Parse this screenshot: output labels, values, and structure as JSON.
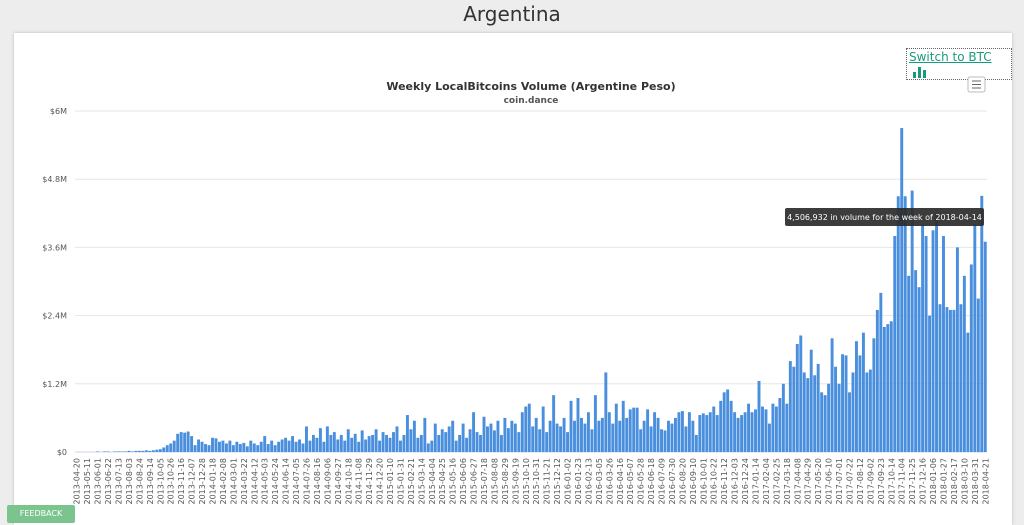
{
  "header": {
    "title": "Argentina"
  },
  "controls": {
    "switch": "Switch to BTC",
    "feedback": "FEEDBACK"
  },
  "chart_data": {
    "type": "bar",
    "title": "Weekly LocalBitcoins Volume (Argentine Peso)",
    "subtitle": "coin.dance",
    "tooltip": "4,506,932 in volume for the week of 2018-04-14",
    "color": "#4a8fde",
    "grid": true,
    "ylim": [
      0,
      6
    ],
    "yticks": [
      {
        "value": 0,
        "label": "$0"
      },
      {
        "value": 1.2,
        "label": "$1.2M"
      },
      {
        "value": 2.4,
        "label": "$2.4M"
      },
      {
        "value": 3.6,
        "label": "$3.6M"
      },
      {
        "value": 4.8,
        "label": "$4.8M"
      },
      {
        "value": 6,
        "label": "$6M"
      }
    ],
    "categories": [
      "2013-04-20",
      null,
      null,
      "2013-05-11",
      null,
      null,
      "2013-06-01",
      null,
      null,
      "2013-06-22",
      null,
      null,
      "2013-07-13",
      null,
      null,
      "2013-08-03",
      null,
      null,
      "2013-08-24",
      null,
      null,
      "2013-09-14",
      null,
      null,
      "2013-10-05",
      null,
      null,
      "2013-10-26",
      null,
      null,
      "2013-11-16",
      null,
      null,
      "2013-12-07",
      null,
      null,
      "2013-12-28",
      null,
      null,
      "2014-01-18",
      null,
      null,
      "2014-02-08",
      null,
      null,
      "2014-03-01",
      null,
      null,
      "2014-03-22",
      null,
      null,
      "2014-04-12",
      null,
      null,
      "2014-05-03",
      null,
      null,
      "2014-05-24",
      null,
      null,
      "2014-06-14",
      null,
      null,
      "2014-07-05",
      null,
      null,
      "2014-07-26",
      null,
      null,
      "2014-08-16",
      null,
      null,
      "2014-09-06",
      null,
      null,
      "2014-09-27",
      null,
      null,
      "2014-10-18",
      null,
      null,
      "2014-11-08",
      null,
      null,
      "2014-11-29",
      null,
      null,
      "2014-12-20",
      null,
      null,
      "2015-01-10",
      null,
      null,
      "2015-01-31",
      null,
      null,
      "2015-02-21",
      null,
      null,
      "2015-03-14",
      null,
      null,
      "2015-04-04",
      null,
      null,
      "2015-04-25",
      null,
      null,
      "2015-05-16",
      null,
      null,
      "2015-06-06",
      null,
      null,
      "2015-06-27",
      null,
      null,
      "2015-07-18",
      null,
      null,
      "2015-08-08",
      null,
      null,
      "2015-08-29",
      null,
      null,
      "2015-09-19",
      null,
      null,
      "2015-10-10",
      null,
      null,
      "2015-10-31",
      null,
      null,
      "2015-11-21",
      null,
      null,
      "2015-12-12",
      null,
      null,
      "2016-01-02",
      null,
      null,
      "2016-01-23",
      null,
      null,
      "2016-02-13",
      null,
      null,
      "2016-03-05",
      null,
      null,
      "2016-03-26",
      null,
      null,
      "2016-04-16",
      null,
      null,
      "2016-05-07",
      null,
      null,
      "2016-05-28",
      null,
      null,
      "2016-06-18",
      null,
      null,
      "2016-07-09",
      null,
      null,
      "2016-07-30",
      null,
      null,
      "2016-08-20",
      null,
      null,
      "2016-09-10",
      null,
      null,
      "2016-10-01",
      null,
      null,
      "2016-10-22",
      null,
      null,
      "2016-11-12",
      null,
      null,
      "2016-12-03",
      null,
      null,
      "2016-12-24",
      null,
      null,
      "2017-01-14",
      null,
      null,
      "2017-02-04",
      null,
      null,
      "2017-02-25",
      null,
      null,
      "2017-03-18",
      null,
      null,
      "2017-04-08",
      null,
      null,
      "2017-04-29",
      null,
      null,
      "2017-05-20",
      null,
      null,
      "2017-06-10",
      null,
      null,
      "2017-07-01",
      null,
      null,
      "2017-07-22",
      null,
      null,
      "2017-08-12",
      null,
      null,
      "2017-09-02",
      null,
      null,
      "2017-09-23",
      null,
      null,
      "2017-10-14",
      null,
      null,
      "2017-11-04",
      null,
      null,
      "2017-11-25",
      null,
      null,
      "2017-12-16",
      null,
      null,
      "2018-01-06",
      null,
      null,
      "2018-01-27",
      null,
      null,
      "2018-02-17",
      null,
      null,
      "2018-03-10",
      null,
      null,
      "2018-03-31",
      null,
      null,
      "2018-04-21"
    ],
    "values": [
      0,
      0,
      0,
      0,
      0,
      0,
      0.01,
      0,
      0.01,
      0.01,
      0,
      0.01,
      0.01,
      0.01,
      0.01,
      0.02,
      0.01,
      0.02,
      0.02,
      0.02,
      0.03,
      0.02,
      0.03,
      0.04,
      0.05,
      0.08,
      0.12,
      0.15,
      0.2,
      0.32,
      0.35,
      0.34,
      0.36,
      0.28,
      0.12,
      0.22,
      0.18,
      0.14,
      0.12,
      0.25,
      0.24,
      0.18,
      0.2,
      0.15,
      0.2,
      0.12,
      0.18,
      0.14,
      0.16,
      0.1,
      0.2,
      0.15,
      0.12,
      0.18,
      0.28,
      0.14,
      0.2,
      0.12,
      0.18,
      0.22,
      0.25,
      0.2,
      0.28,
      0.18,
      0.22,
      0.15,
      0.45,
      0.2,
      0.3,
      0.25,
      0.42,
      0.18,
      0.45,
      0.3,
      0.35,
      0.22,
      0.3,
      0.2,
      0.4,
      0.25,
      0.32,
      0.18,
      0.38,
      0.22,
      0.28,
      0.3,
      0.4,
      0.2,
      0.35,
      0.3,
      0.25,
      0.35,
      0.45,
      0.2,
      0.3,
      0.65,
      0.4,
      0.55,
      0.25,
      0.3,
      0.6,
      0.15,
      0.2,
      0.5,
      0.3,
      0.4,
      0.35,
      0.45,
      0.55,
      0.2,
      0.3,
      0.5,
      0.25,
      0.4,
      0.7,
      0.35,
      0.3,
      0.62,
      0.45,
      0.5,
      0.38,
      0.55,
      0.3,
      0.6,
      0.42,
      0.55,
      0.5,
      0.35,
      0.7,
      0.8,
      0.85,
      0.45,
      0.6,
      0.4,
      0.8,
      0.35,
      0.55,
      1.0,
      0.5,
      0.45,
      0.6,
      0.35,
      0.9,
      0.55,
      0.95,
      0.6,
      0.5,
      0.7,
      0.4,
      1.0,
      0.55,
      0.6,
      1.4,
      0.7,
      0.5,
      0.85,
      0.55,
      0.9,
      0.6,
      0.75,
      0.78,
      0.78,
      0.4,
      0.55,
      0.75,
      0.45,
      0.7,
      0.6,
      0.4,
      0.38,
      0.55,
      0.5,
      0.6,
      0.7,
      0.72,
      0.45,
      0.7,
      0.55,
      0.3,
      0.65,
      0.68,
      0.65,
      0.7,
      0.8,
      0.65,
      0.9,
      1.05,
      1.1,
      0.9,
      0.7,
      0.6,
      0.65,
      0.7,
      0.85,
      0.7,
      0.75,
      1.25,
      0.8,
      0.75,
      0.5,
      0.85,
      0.8,
      0.95,
      1.2,
      0.85,
      1.6,
      1.5,
      1.9,
      2.05,
      1.4,
      1.3,
      1.8,
      1.35,
      1.55,
      1.05,
      1.0,
      1.2,
      2.0,
      1.5,
      1.2,
      1.72,
      1.7,
      1.05,
      1.4,
      1.95,
      1.7,
      2.1,
      1.4,
      1.45,
      2.0,
      2.5,
      2.8,
      2.2,
      2.25,
      2.3,
      3.8,
      4.5,
      5.7,
      4.5,
      3.1,
      4.6,
      3.2,
      2.9,
      4.0,
      3.8,
      2.4,
      3.9,
      4.2,
      2.6,
      3.8,
      2.55,
      2.5,
      2.5,
      3.6,
      2.6,
      3.1,
      2.1,
      3.3,
      4.0,
      2.7,
      4.506932,
      3.7
    ]
  }
}
